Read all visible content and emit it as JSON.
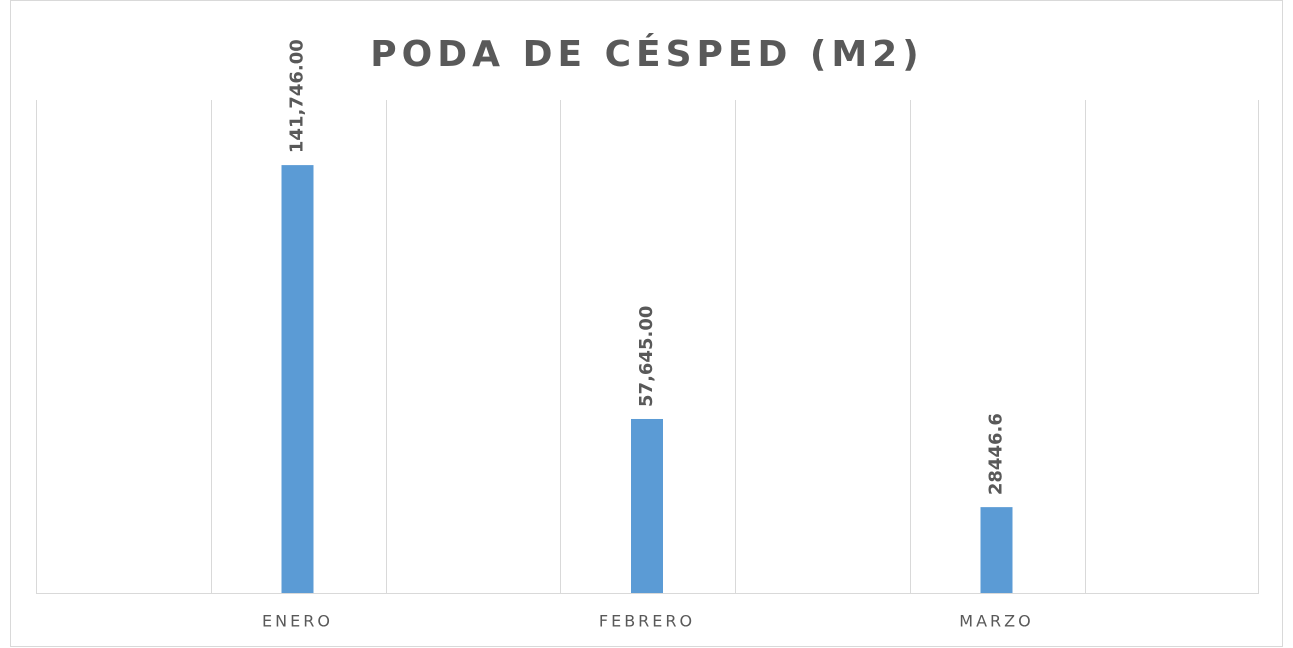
{
  "chart_data": {
    "type": "bar",
    "title": "PODA DE CÉSPED (M2)",
    "categories": [
      "ENERO",
      "FEBRERO",
      "MARZO"
    ],
    "values": [
      141746,
      57645,
      28446.6
    ],
    "value_labels": [
      "141,746.00",
      "57,645.00",
      "28446.6"
    ],
    "color": "#5b9bd5",
    "ylim": [
      0,
      160000
    ]
  }
}
